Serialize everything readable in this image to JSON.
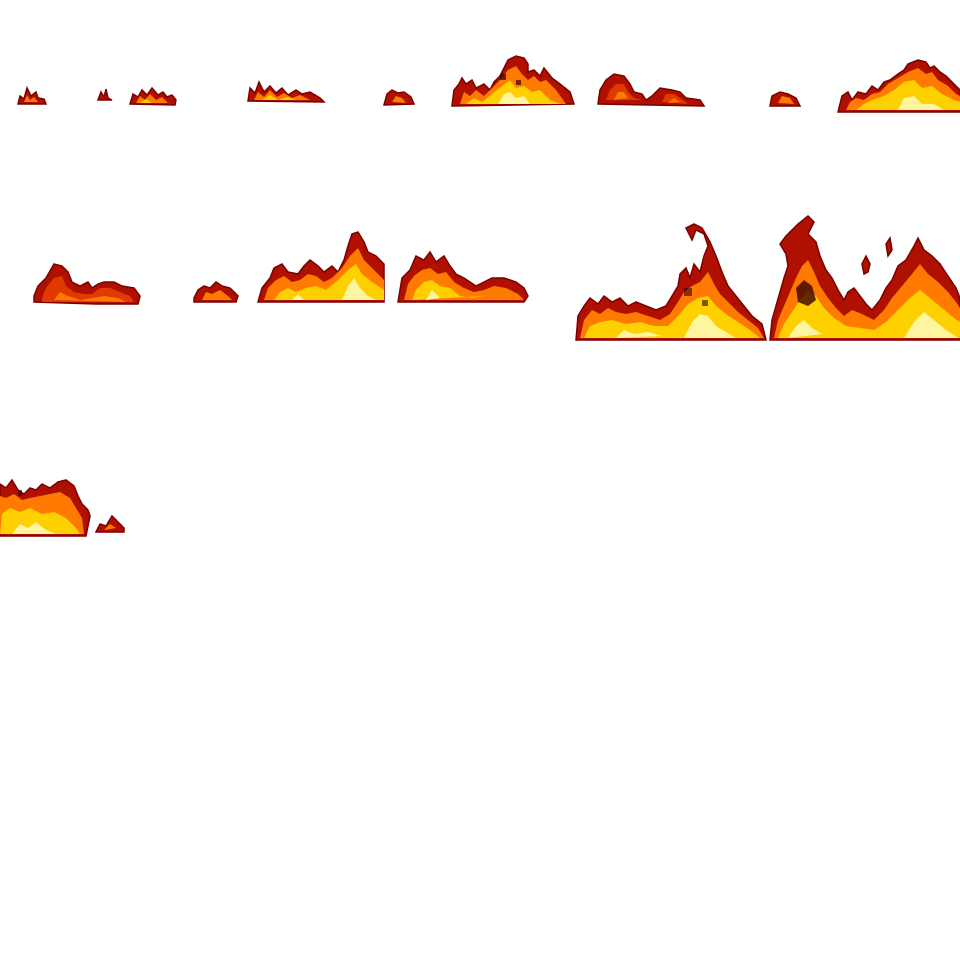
{
  "sprite_sheet": {
    "name": "",
    "colors": {
      "background": "#ffffff",
      "outline": "#7a0000",
      "dark": "#b01000",
      "mid": "#e03a00",
      "orange": "#ff7a00",
      "yellow": "#ffd000",
      "core": "#fff4a0",
      "ember": "#3a0000"
    },
    "frames": [
      {
        "id": "fire-frame-1",
        "icon": "fire-sprite-icon",
        "intensity": 0.15
      },
      {
        "id": "fire-frame-2",
        "icon": "fire-sprite-icon",
        "intensity": 0.2
      },
      {
        "id": "fire-frame-3",
        "icon": "fire-sprite-icon",
        "intensity": 0.2
      },
      {
        "id": "fire-frame-4",
        "icon": "fire-sprite-icon",
        "intensity": 0.45
      },
      {
        "id": "fire-frame-5",
        "icon": "fire-sprite-icon",
        "intensity": 0.35
      },
      {
        "id": "fire-frame-6",
        "icon": "fire-sprite-icon",
        "intensity": 0.5
      },
      {
        "id": "fire-frame-7",
        "icon": "fire-sprite-icon",
        "intensity": 0.35
      },
      {
        "id": "fire-frame-8",
        "icon": "fire-sprite-icon",
        "intensity": 0.6
      },
      {
        "id": "fire-frame-9",
        "icon": "fire-sprite-icon",
        "intensity": 0.45
      },
      {
        "id": "fire-frame-10",
        "icon": "fire-sprite-icon",
        "intensity": 0.95
      },
      {
        "id": "fire-frame-11",
        "icon": "fire-sprite-icon",
        "intensity": 1.0
      },
      {
        "id": "fire-frame-12",
        "icon": "fire-sprite-icon",
        "intensity": 0.55
      }
    ]
  }
}
